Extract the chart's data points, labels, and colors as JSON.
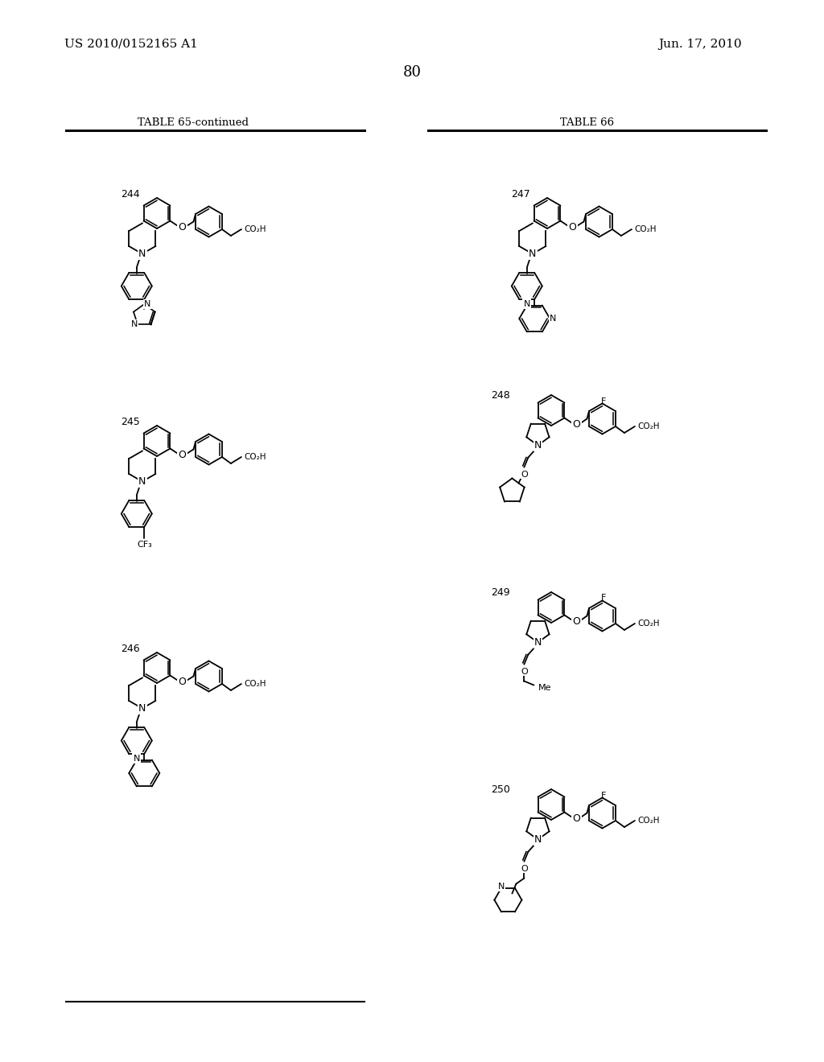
{
  "bg_color": "#ffffff",
  "page_number": "80",
  "patent_number": "US 2010/0152165 A1",
  "patent_date": "Jun. 17, 2010",
  "table_left_title": "TABLE 65-continued",
  "table_right_title": "TABLE 66"
}
